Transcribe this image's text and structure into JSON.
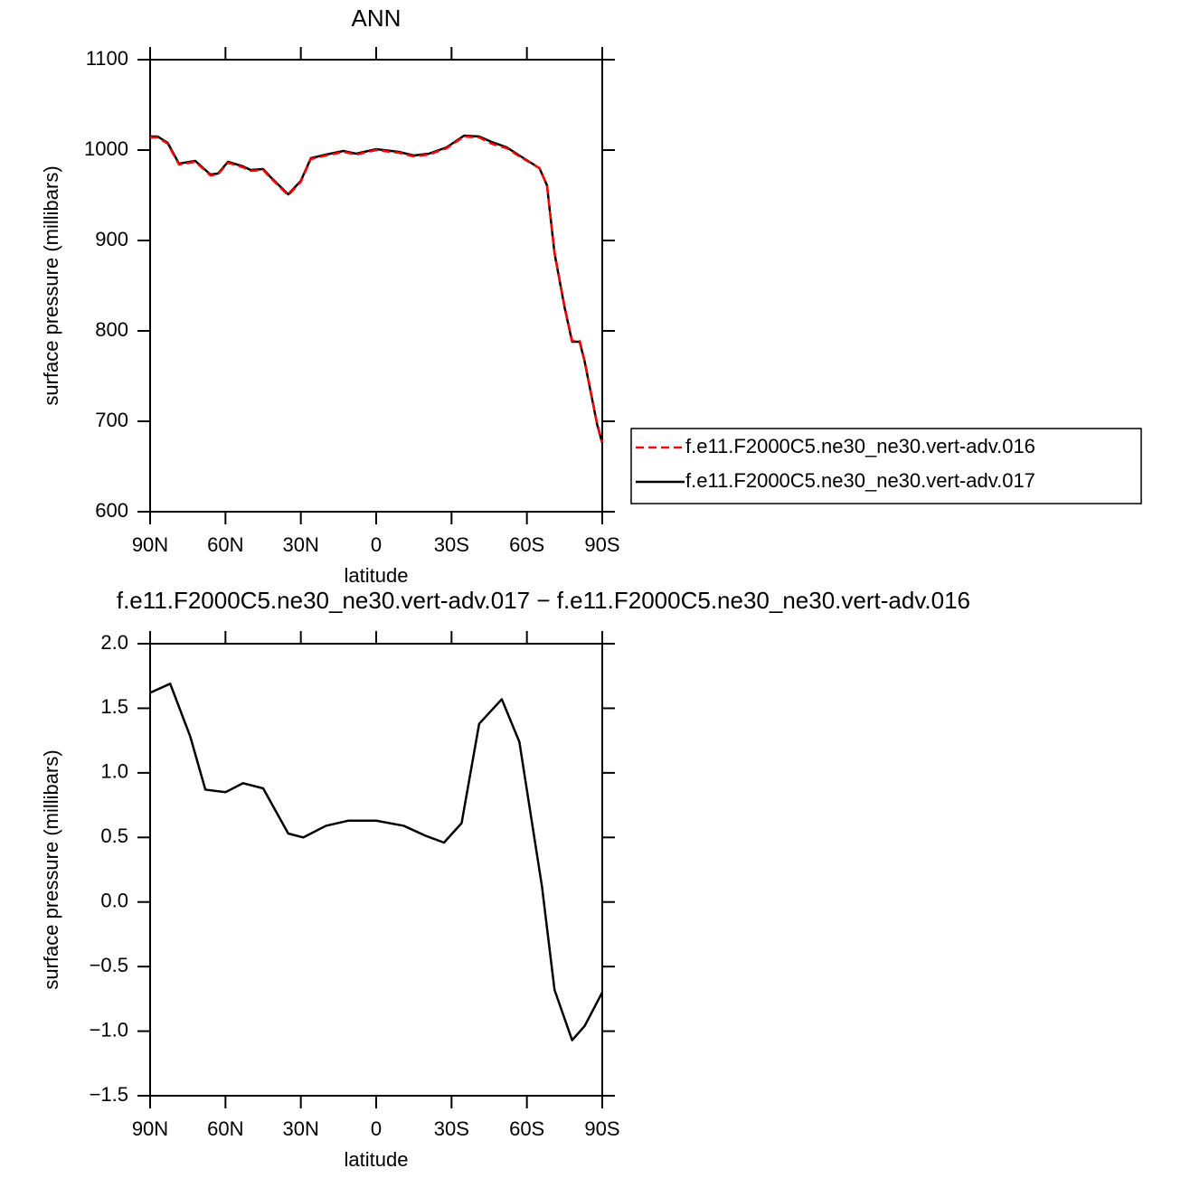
{
  "chart_data": [
    {
      "type": "line",
      "title": "ANN",
      "xlabel": "latitude",
      "ylabel": "surface pressure (millibars)",
      "x": [
        90,
        87,
        83,
        78.5,
        72,
        66,
        63,
        59,
        53,
        50,
        45,
        42,
        35,
        30,
        26,
        20,
        13,
        8,
        0,
        -9,
        -15,
        -21,
        -28,
        -35,
        -41,
        -46,
        -52,
        -57,
        -65,
        -68,
        -71,
        -75,
        -78,
        -81,
        -83,
        -88,
        -90
      ],
      "series": [
        {
          "name": "f.e11.F2000C5.ne30_ne30.vert-adv.016",
          "color": "#ff0000",
          "dash": true,
          "values": [
            1014,
            1014,
            1007,
            984,
            987,
            972,
            973,
            986,
            981,
            977,
            978,
            969,
            950,
            965,
            990,
            994,
            998,
            995,
            1000,
            997,
            993,
            995,
            1002,
            1015,
            1014,
            1007,
            1002,
            993,
            980,
            961,
            887,
            827,
            789,
            789,
            767,
            697,
            677
          ]
        },
        {
          "name": "f.e11.F2000C5.ne30_ne30.vert-adv.017",
          "color": "#000000",
          "dash": false,
          "values": [
            1015,
            1015,
            1008,
            985,
            988,
            973,
            974,
            987,
            982,
            978,
            979,
            970,
            951,
            966,
            991,
            995,
            999,
            996,
            1001,
            998,
            994,
            996,
            1003,
            1016,
            1015,
            1009,
            1003,
            994,
            980,
            961,
            886,
            826,
            788,
            788,
            766,
            696,
            676
          ]
        }
      ],
      "xlim": [
        90,
        -90
      ],
      "xticks": [
        {
          "value": 90,
          "label": "90N"
        },
        {
          "value": 60,
          "label": "60N"
        },
        {
          "value": 30,
          "label": "30N"
        },
        0,
        {
          "value": -30,
          "label": "30S"
        },
        {
          "value": -60,
          "label": "60S"
        },
        {
          "value": -90,
          "label": "90S"
        }
      ],
      "ylim": [
        600,
        1100
      ],
      "yticks": [
        600,
        700,
        800,
        900,
        1000,
        1100
      ],
      "legend": "right"
    },
    {
      "type": "line",
      "title": "f.e11.F2000C5.ne30_ne30.vert-adv.017 − f.e11.F2000C5.ne30_ne30.vert-adv.016",
      "xlabel": "latitude",
      "ylabel": "surface pressure (millibars)",
      "x": [
        90,
        82,
        74,
        68,
        60,
        53,
        45,
        35,
        29,
        20,
        11,
        0,
        -11,
        -20,
        -27,
        -34,
        -41,
        -50,
        -57,
        -66,
        -71,
        -78,
        -83,
        -90
      ],
      "values": [
        1.62,
        1.69,
        1.28,
        0.87,
        0.85,
        0.92,
        0.88,
        0.53,
        0.5,
        0.59,
        0.63,
        0.63,
        0.59,
        0.51,
        0.46,
        0.61,
        1.38,
        1.57,
        1.24,
        0.12,
        -0.68,
        -1.07,
        -0.96,
        -0.7
      ],
      "color": "#000000",
      "xlim": [
        90,
        -90
      ],
      "xticks": [
        {
          "value": 90,
          "label": "90N"
        },
        {
          "value": 60,
          "label": "60N"
        },
        {
          "value": 30,
          "label": "30N"
        },
        0,
        {
          "value": -30,
          "label": "30S"
        },
        {
          "value": -60,
          "label": "60S"
        },
        {
          "value": -90,
          "label": "90S"
        }
      ],
      "ylim": [
        -1.5,
        2.0
      ],
      "yticks": [
        {
          "value": -1.5,
          "label": "−1.5"
        },
        {
          "value": -1.0,
          "label": "−1.0"
        },
        {
          "value": -0.5,
          "label": "−0.5"
        },
        {
          "value": 0,
          "label": "0.0"
        },
        {
          "value": 0.5,
          "label": "0.5"
        },
        {
          "value": 1.0,
          "label": "1.0"
        },
        {
          "value": 1.5,
          "label": "1.5"
        },
        {
          "value": 2.0,
          "label": "2.0"
        }
      ]
    }
  ]
}
